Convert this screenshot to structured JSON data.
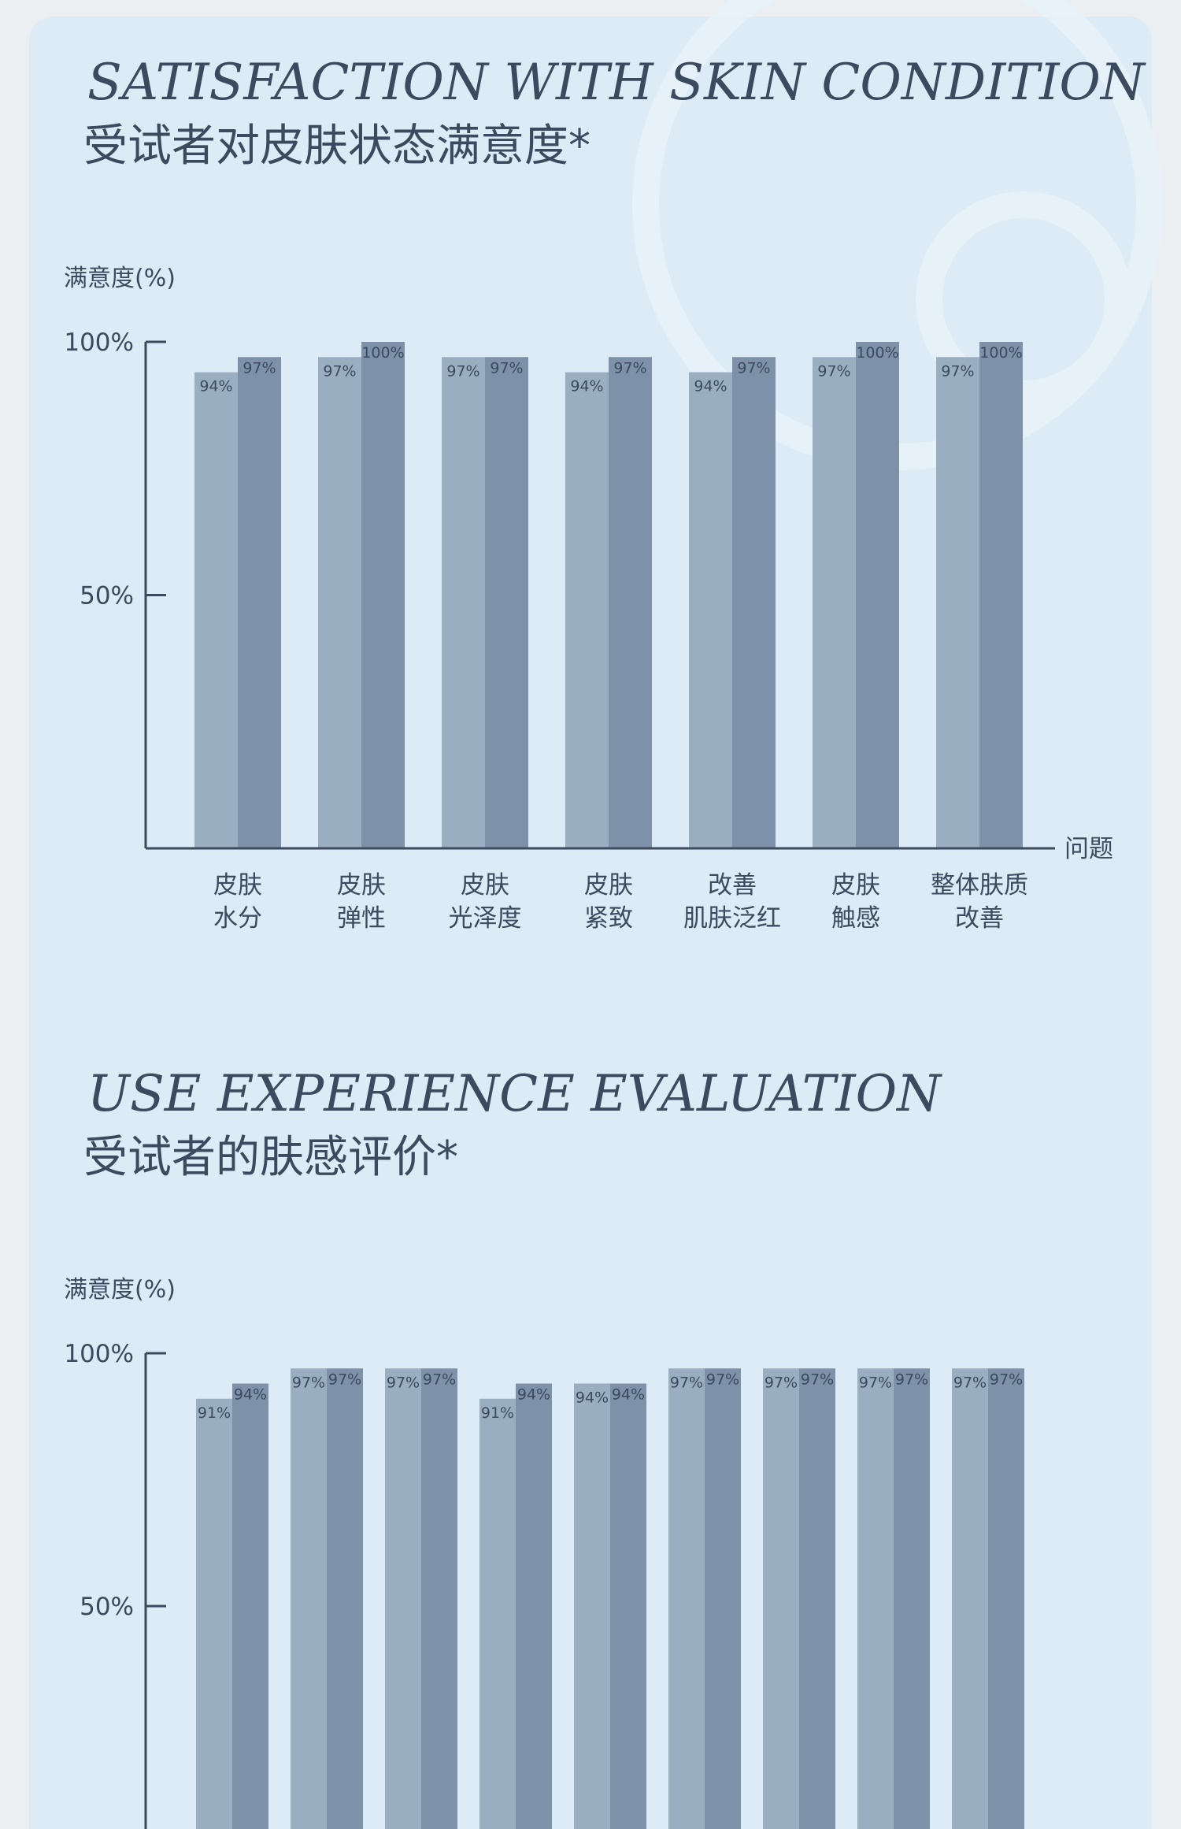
{
  "chart_data": [
    {
      "type": "bar",
      "title": "SATISFACTION WITH SKIN CONDITION",
      "subtitle": "受试者对皮肤状态满意度*",
      "y_label": "满意度(%)",
      "x_label": "问题",
      "categories": [
        [
          "皮肤",
          "水分"
        ],
        [
          "皮肤",
          "弹性"
        ],
        [
          "皮肤",
          "光泽度"
        ],
        [
          "皮肤",
          "紧致"
        ],
        [
          "改善",
          "肌肤泛红"
        ],
        [
          "皮肤",
          "触感"
        ],
        [
          "整体肤质",
          "改善"
        ]
      ],
      "series": [
        {
          "color": "#9aaec1",
          "values": [
            94,
            97,
            97,
            94,
            94,
            97,
            97
          ],
          "value_labels": [
            "94%",
            "97%",
            "97%",
            "94%",
            "94%",
            "97%",
            "97%"
          ]
        },
        {
          "color": "#7d91a8",
          "values": [
            97,
            100,
            97,
            97,
            97,
            100,
            100
          ],
          "value_labels": [
            "97%",
            "100%",
            "97%",
            "97%",
            "97%",
            "100%",
            "100%"
          ]
        }
      ],
      "ylim": [
        0,
        100
      ],
      "yticks": [
        {
          "value": 50,
          "label": "50%"
        },
        {
          "value": 100,
          "label": "100%"
        }
      ]
    },
    {
      "type": "bar",
      "title": "USE EXPERIENCE EVALUATION",
      "subtitle": "受试者的肤感评价*",
      "y_label": "满意度(%)",
      "categories": [
        null,
        null,
        null,
        null,
        null,
        null,
        null,
        null,
        null
      ],
      "series": [
        {
          "color": "#9aaec1",
          "values": [
            91,
            97,
            97,
            91,
            94,
            97,
            97,
            97,
            97
          ],
          "value_labels": [
            "91%",
            "97%",
            "97%",
            "91%",
            "94%",
            "97%",
            "97%",
            "97%",
            "97%"
          ]
        },
        {
          "color": "#7d91a8",
          "values": [
            94,
            97,
            97,
            94,
            94,
            97,
            97,
            97,
            97
          ],
          "value_labels": [
            "94%",
            "97%",
            "97%",
            "94%",
            "94%",
            "97%",
            "97%",
            "97%",
            "97%"
          ]
        }
      ],
      "ylim": [
        0,
        100
      ],
      "yticks": [
        {
          "value": 50,
          "label": "50%"
        },
        {
          "value": 100,
          "label": "100%"
        }
      ]
    }
  ]
}
